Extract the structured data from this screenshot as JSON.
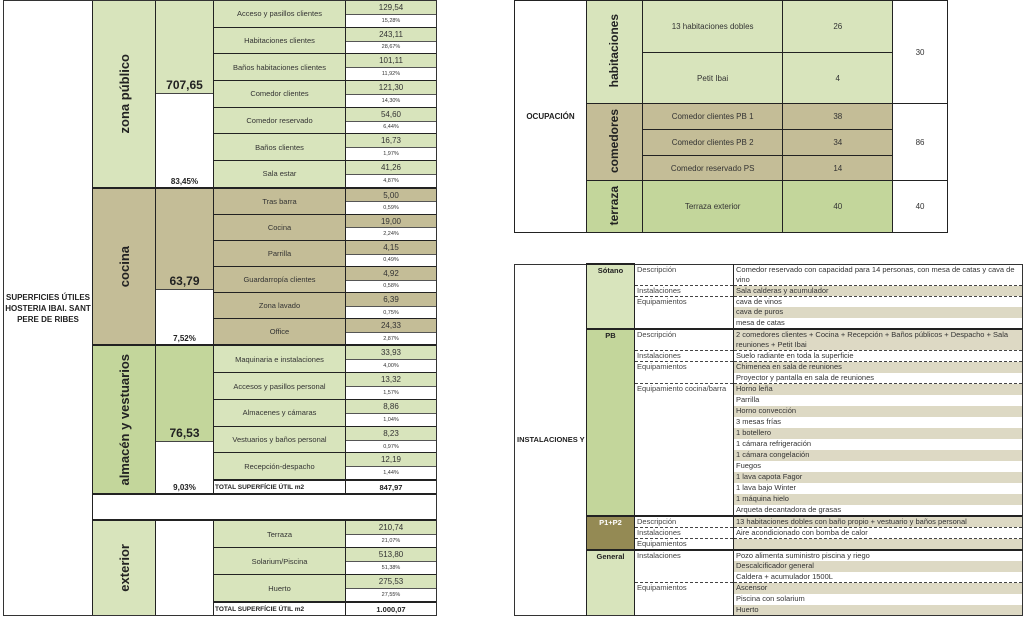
{
  "superficies": {
    "title": "SUPERFICIES ÚTILES HOSTERIA IBAI. SANT PERE DE RIBES",
    "colors": {
      "green_light": "#d8e4bc",
      "green": "#c3d69b",
      "tan": "#c4bd97"
    },
    "sections": [
      {
        "zone": "zona público",
        "total": "707,65",
        "pct": "83,45%",
        "zone_color": "#d8e4bc",
        "item_color": "#d8e4bc",
        "items": [
          {
            "name": "Acceso y pasillos clientes",
            "value": "129,54",
            "pct": "15,28%"
          },
          {
            "name": "Habitaciones clientes",
            "value": "243,11",
            "pct": "28,67%"
          },
          {
            "name": "Baños habitaciones clientes",
            "value": "101,11",
            "pct": "11,92%"
          },
          {
            "name": "Comedor clientes",
            "value": "121,30",
            "pct": "14,30%"
          },
          {
            "name": "Comedor reservado",
            "value": "54,60",
            "pct": "6,44%"
          },
          {
            "name": "Baños clientes",
            "value": "16,73",
            "pct": "1,97%"
          },
          {
            "name": "Sala estar",
            "value": "41,26",
            "pct": "4,87%"
          }
        ]
      },
      {
        "zone": "cocina",
        "total": "63,79",
        "pct": "7,52%",
        "zone_color": "#c4bd97",
        "item_color": "#c4bd97",
        "items": [
          {
            "name": "Tras barra",
            "value": "5,00",
            "pct": "0,59%"
          },
          {
            "name": "Cocina",
            "value": "19,00",
            "pct": "2,24%"
          },
          {
            "name": "Parrilla",
            "value": "4,15",
            "pct": "0,49%"
          },
          {
            "name": "Guardarropía clientes",
            "value": "4,92",
            "pct": "0,58%"
          },
          {
            "name": "Zona lavado",
            "value": "6,39",
            "pct": "0,75%"
          },
          {
            "name": "Office",
            "value": "24,33",
            "pct": "2,87%"
          }
        ]
      },
      {
        "zone": "almacén y vestuarios",
        "total": "76,53",
        "pct": "9,03%",
        "zone_color": "#c3d69b",
        "item_color": "#d8e4bc",
        "items": [
          {
            "name": "Maquinaria e instalaciones",
            "value": "33,93",
            "pct": "4,00%"
          },
          {
            "name": "Accesos y pasillos personal",
            "value": "13,32",
            "pct": "1,57%"
          },
          {
            "name": "Almacenes y cámaras",
            "value": "8,86",
            "pct": "1,04%"
          },
          {
            "name": "Vestuarios y baños personal",
            "value": "8,23",
            "pct": "0,97%"
          },
          {
            "name": "Recepción-despacho",
            "value": "12,19",
            "pct": "1,44%"
          }
        ],
        "total_label": "TOTAL SUPERFÍCIE ÚTIL m2",
        "total_value": "847,97"
      },
      {
        "zone": "exterior",
        "total": "",
        "pct": "",
        "zone_color": "#d8e4bc",
        "item_color": "#d8e4bc",
        "items": [
          {
            "name": "Terraza",
            "value": "210,74",
            "pct": "21,07%"
          },
          {
            "name": "Solarium/Piscina",
            "value": "513,80",
            "pct": "51,38%"
          },
          {
            "name": "Huerto",
            "value": "275,53",
            "pct": "27,55%"
          }
        ],
        "total_label": "TOTAL SUPERFÍCIE ÚTIL m2",
        "total_value": "1.000,07"
      }
    ]
  },
  "ocupacion": {
    "title": "OCUPACIÓN",
    "groups": [
      {
        "name": "habitaciones",
        "total": "30",
        "rows": [
          {
            "name": "13 habitaciones dobles",
            "value": "26"
          },
          {
            "name": "Petit Ibai",
            "value": "4"
          }
        ]
      },
      {
        "name": "comedores",
        "total": "86",
        "rows": [
          {
            "name": "Comedor clientes PB 1",
            "value": "38"
          },
          {
            "name": "Comedor clientes PB 2",
            "value": "34"
          },
          {
            "name": "Comedor reservado PS",
            "value": "14"
          }
        ]
      },
      {
        "name": "terraza",
        "total": "40",
        "rows": [
          {
            "name": "Terraza exterior",
            "value": "40"
          }
        ]
      }
    ]
  },
  "instalaciones": {
    "title": "INSTALACIONES Y EQUIPAMIENTOS",
    "floors": [
      {
        "name": "Sótano",
        "color": "#d8e4bc",
        "sections": [
          {
            "key": "Descripción",
            "values": [
              "Comedor reservado con capacidad para 14 personas, con mesa de catas y cava de vino"
            ]
          },
          {
            "key": "Instalaciones",
            "values": [
              "Sala calderas y acumulador"
            ]
          },
          {
            "key": "Equipamientos",
            "values": [
              "cava de vinos",
              "cava de puros",
              "mesa de catas"
            ]
          }
        ]
      },
      {
        "name": "PB",
        "color": "#c3d69b",
        "sections": [
          {
            "key": "Descripción",
            "values": [
              "2 comedores clientes + Cocina + Recepción + Baños públicos + Despacho + Sala reuniones + Petit Ibai"
            ]
          },
          {
            "key": "Instalaciones",
            "values": [
              "Suelo radiante en toda la superficie"
            ]
          },
          {
            "key": "Equipamientos",
            "values": [
              "Chimenea en sala de reuniones",
              "Proyector y pantalla en sala de reuniones"
            ]
          },
          {
            "key": "Equipamiento cocina/barra",
            "values": [
              "Horno leña",
              "Parrilla",
              "Horno convección",
              "3 mesas frías",
              "1 botellero",
              "1 cámara refrigeración",
              "1 cámara congelación",
              "Fuegos",
              "1 lava capota Fagor",
              "1 lava bajo Winter",
              "1 máquina hielo",
              "Arqueta decantadora de grasas"
            ]
          }
        ]
      },
      {
        "name": "P1+P2",
        "color": "#948a54",
        "sections": [
          {
            "key": "Descripción",
            "values": [
              "13 habitaciones dobles con baño propio + vestuario y baños personal"
            ]
          },
          {
            "key": "Instalaciones",
            "values": [
              "Aire acondicionado con bomba de calor"
            ]
          },
          {
            "key": "Equipamientos",
            "values": [
              ""
            ]
          }
        ]
      },
      {
        "name": "General",
        "color": "#d8e4bc",
        "sections": [
          {
            "key": "Instalaciones",
            "values": [
              "Pozo alimenta suministro piscina y riego",
              "Descalcificador general",
              "Caldera + acumulador 1500L"
            ]
          },
          {
            "key": "Equipamientos",
            "values": [
              "Ascensor",
              "Piscina con solarium",
              "Huerto"
            ]
          }
        ]
      }
    ],
    "shade_color": "#ddd9c4"
  }
}
